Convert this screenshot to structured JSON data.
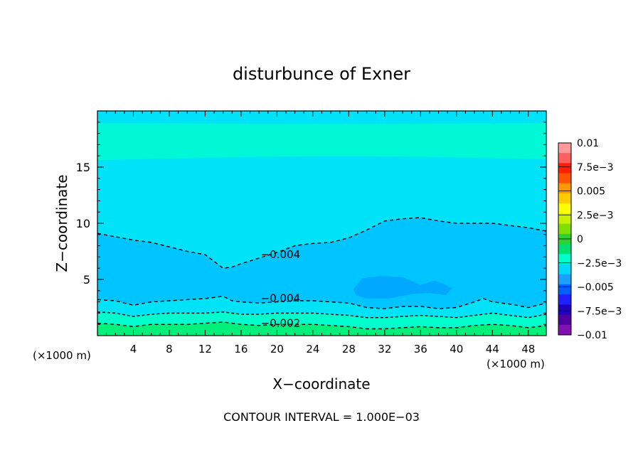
{
  "chart_data": {
    "type": "contour",
    "title": "disturbunce of Exner",
    "xlabel": "X−coordinate",
    "ylabel": "Z−coordinate",
    "x_unit_left": "(×1000 m)",
    "x_unit_right": "(×1000 m)",
    "footer": "CONTOUR INTERVAL = 1.000E−03",
    "xlim": [
      0,
      50
    ],
    "ylim": [
      0,
      20
    ],
    "x_ticks": [
      4,
      8,
      12,
      16,
      20,
      24,
      28,
      32,
      36,
      40,
      44,
      48
    ],
    "x_tick_labels": [
      "4",
      "8",
      "12",
      "16",
      "20",
      "24",
      "28",
      "32",
      "36",
      "40",
      "44",
      "48"
    ],
    "y_ticks": [
      5,
      10,
      15
    ],
    "y_tick_labels": [
      "5",
      "10",
      "15"
    ],
    "colorbar": {
      "range": [
        -0.01,
        0.01
      ],
      "tick_labels": [
        "0.01",
        "7.5e−3",
        "0.005",
        "2.5e−3",
        "0",
        "−2.5e−3",
        "−0.005",
        "−7.5e−3",
        "−0.01"
      ],
      "colors": [
        "#ff9a9a",
        "#ff6060",
        "#ff2000",
        "#ff5500",
        "#ff9900",
        "#ffcc00",
        "#ffff00",
        "#c8f000",
        "#80e000",
        "#30d030",
        "#00e070",
        "#00ffcc",
        "#00d8ff",
        "#1aa0ff",
        "#0060ff",
        "#2020ff",
        "#2000c0",
        "#5000a0",
        "#8010b0"
      ]
    },
    "filled_levels": [
      {
        "range": [
          -0.003,
          -0.002
        ],
        "color": "#00ffcc"
      },
      {
        "range": [
          -0.004,
          -0.003
        ],
        "color": "#00e2f8"
      },
      {
        "range": [
          -0.005,
          -0.004
        ],
        "color": "#00c4ff"
      },
      {
        "range": [
          -0.006,
          -0.005
        ],
        "color": "#00a8ff"
      }
    ],
    "contour_lines": [
      {
        "level": -0.004,
        "label": "−0.004",
        "x": [
          0,
          2,
          4,
          6,
          8,
          10,
          12,
          13,
          14,
          15,
          16,
          18,
          20,
          22,
          24,
          26,
          28,
          30,
          32,
          34,
          36,
          38,
          40,
          42,
          44,
          46,
          48,
          50
        ],
        "y": [
          9.1,
          8.8,
          8.5,
          8.3,
          7.9,
          7.5,
          7.2,
          6.6,
          6.0,
          6.1,
          6.4,
          6.9,
          7.4,
          8.0,
          8.2,
          8.3,
          8.7,
          9.4,
          10.2,
          10.4,
          10.5,
          10.2,
          10.0,
          10.0,
          10.0,
          9.8,
          9.6,
          9.3
        ]
      },
      {
        "level": -0.004,
        "label": "−0.004",
        "x": [
          0,
          2,
          4,
          6,
          8,
          10,
          12,
          14,
          15,
          16,
          18,
          20,
          22,
          24,
          26,
          28,
          30,
          32,
          34,
          36,
          38,
          40,
          42,
          43,
          44,
          46,
          48,
          50
        ],
        "y": [
          3.2,
          3.1,
          2.7,
          3.0,
          3.1,
          3.2,
          3.3,
          3.5,
          3.1,
          3.0,
          2.9,
          3.0,
          3.1,
          3.1,
          3.0,
          2.9,
          2.5,
          2.4,
          2.6,
          2.6,
          2.4,
          2.5,
          3.0,
          3.3,
          3.0,
          2.8,
          2.5,
          2.9
        ]
      },
      {
        "level": -0.003,
        "label": "",
        "x": [
          0,
          2,
          4,
          6,
          8,
          10,
          12,
          14,
          16,
          18,
          20,
          22,
          24,
          26,
          28,
          30,
          32,
          34,
          36,
          38,
          40,
          42,
          44,
          46,
          48,
          50
        ],
        "y": [
          2.1,
          2.0,
          1.7,
          1.9,
          2.0,
          2.0,
          2.0,
          2.1,
          1.9,
          1.9,
          2.0,
          2.0,
          2.0,
          1.9,
          1.8,
          1.6,
          1.6,
          1.7,
          1.8,
          1.7,
          1.6,
          1.8,
          2.0,
          1.8,
          1.6,
          1.9
        ]
      },
      {
        "level": -0.002,
        "label": "−0.002",
        "x": [
          0,
          2,
          4,
          6,
          8,
          10,
          12,
          14,
          16,
          18,
          20,
          22,
          24,
          26,
          28,
          30,
          32,
          34,
          36,
          38,
          40,
          42,
          44,
          46,
          48,
          50
        ],
        "y": [
          1.1,
          1.0,
          0.8,
          1.0,
          1.0,
          1.0,
          1.1,
          1.2,
          1.0,
          0.9,
          1.0,
          1.0,
          1.0,
          0.9,
          0.8,
          0.6,
          0.6,
          0.7,
          0.8,
          0.7,
          0.7,
          0.9,
          1.0,
          0.9,
          0.7,
          0.9
        ]
      }
    ],
    "contour_labels": [
      {
        "text": "−0.004",
        "x": 18.2,
        "y": 6.9
      },
      {
        "text": "−0.004",
        "x": 18.2,
        "y": 3.0
      },
      {
        "text": "−0.002",
        "x": 18.2,
        "y": 0.8
      }
    ]
  }
}
